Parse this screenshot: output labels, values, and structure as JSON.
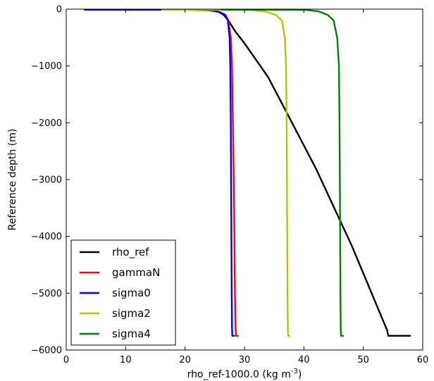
{
  "chart_data": {
    "type": "line",
    "xlabel": "rho_ref-1000.0 (kg m",
    "xlabel_sup": "-3",
    "xlabel_tail": ")",
    "ylabel": "Reference depth (m)",
    "xlim": [
      0,
      60
    ],
    "ylim": [
      -6000,
      0
    ],
    "xticks": [
      0,
      10,
      20,
      30,
      40,
      50,
      60
    ],
    "xtick_labels": [
      "0",
      "10",
      "20",
      "30",
      "40",
      "50",
      "60"
    ],
    "yticks": [
      0,
      -1000,
      -2000,
      -3000,
      -4000,
      -5000,
      -6000
    ],
    "ytick_labels": [
      "0",
      "−1000",
      "−2000",
      "−3000",
      "−4000",
      "−5000",
      "−6000"
    ],
    "grid": false,
    "legend_position": "lower-left",
    "series": [
      {
        "name": "rho_ref",
        "color": "#000000",
        "points": [
          [
            3,
            -10
          ],
          [
            12,
            -10
          ],
          [
            20,
            -10
          ],
          [
            24,
            -15
          ],
          [
            25.5,
            -40
          ],
          [
            26.5,
            -100
          ],
          [
            27.3,
            -200
          ],
          [
            28.5,
            -400
          ],
          [
            30,
            -600
          ],
          [
            32,
            -900
          ],
          [
            34,
            -1200
          ],
          [
            36,
            -1600
          ],
          [
            38,
            -2000
          ],
          [
            40,
            -2400
          ],
          [
            42,
            -2800
          ],
          [
            44,
            -3250
          ],
          [
            46,
            -3700
          ],
          [
            48,
            -4150
          ],
          [
            50,
            -4650
          ],
          [
            52,
            -5150
          ],
          [
            54,
            -5650
          ],
          [
            54.2,
            -5750
          ],
          [
            58,
            -5750
          ]
        ]
      },
      {
        "name": "gammaN",
        "color": "#ff0000",
        "points": [
          [
            22.5,
            -10
          ],
          [
            24.5,
            -20
          ],
          [
            25.8,
            -50
          ],
          [
            26.8,
            -100
          ],
          [
            27.3,
            -200
          ],
          [
            27.7,
            -500
          ],
          [
            27.9,
            -1000
          ],
          [
            28.05,
            -2000
          ],
          [
            28.2,
            -3000
          ],
          [
            28.3,
            -4000
          ],
          [
            28.4,
            -5000
          ],
          [
            28.5,
            -5600
          ],
          [
            28.6,
            -5750
          ],
          [
            29.0,
            -5750
          ]
        ]
      },
      {
        "name": "sigma0",
        "color": "#0000ff",
        "points": [
          [
            3,
            -10
          ],
          [
            16,
            -10
          ],
          [
            21,
            -10
          ],
          [
            24,
            -20
          ],
          [
            25.8,
            -50
          ],
          [
            26.7,
            -100
          ],
          [
            27.2,
            -200
          ],
          [
            27.5,
            -500
          ],
          [
            27.6,
            -1000
          ],
          [
            27.7,
            -2000
          ],
          [
            27.75,
            -3000
          ],
          [
            27.8,
            -4000
          ],
          [
            27.85,
            -5000
          ],
          [
            27.9,
            -5600
          ],
          [
            27.95,
            -5750
          ],
          [
            28.4,
            -5750
          ]
        ]
      },
      {
        "name": "sigma2",
        "color": "#bfbf00",
        "points": [
          [
            16,
            -10
          ],
          [
            26,
            -10
          ],
          [
            31,
            -15
          ],
          [
            33.5,
            -40
          ],
          [
            35.3,
            -100
          ],
          [
            36.3,
            -200
          ],
          [
            36.8,
            -500
          ],
          [
            37.0,
            -1000
          ],
          [
            37.1,
            -2000
          ],
          [
            37.15,
            -3000
          ],
          [
            37.2,
            -4000
          ],
          [
            37.25,
            -5000
          ],
          [
            37.3,
            -5600
          ],
          [
            37.35,
            -5750
          ],
          [
            37.7,
            -5750
          ]
        ]
      },
      {
        "name": "sigma4",
        "color": "#008000",
        "points": [
          [
            26,
            -10
          ],
          [
            36,
            -10
          ],
          [
            40.5,
            -15
          ],
          [
            42.5,
            -40
          ],
          [
            44,
            -100
          ],
          [
            45,
            -200
          ],
          [
            45.6,
            -500
          ],
          [
            45.9,
            -1000
          ],
          [
            46.0,
            -2000
          ],
          [
            46.05,
            -3000
          ],
          [
            46.1,
            -4000
          ],
          [
            46.15,
            -5000
          ],
          [
            46.2,
            -5600
          ],
          [
            46.25,
            -5750
          ],
          [
            46.7,
            -5750
          ]
        ]
      }
    ]
  }
}
